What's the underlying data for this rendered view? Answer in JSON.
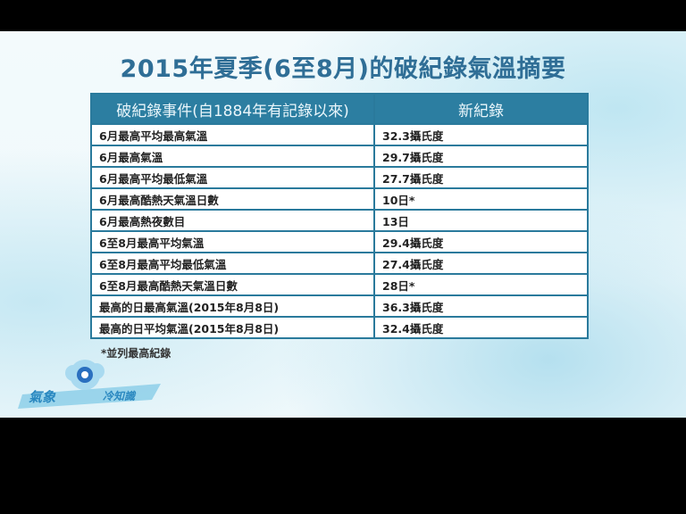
{
  "title": "2015年夏季(6至8月)的破紀錄氣溫摘要",
  "table": {
    "headers": [
      "破紀錄事件(自1884年有記錄以來)",
      "新紀錄"
    ],
    "rows": [
      [
        "6月最高平均最高氣溫",
        "32.3攝氏度"
      ],
      [
        "6月最高氣溫",
        "29.7攝氏度"
      ],
      [
        "6月最高平均最低氣溫",
        "27.7攝氏度"
      ],
      [
        "6月最高酷熱天氣溫日數",
        "10日*"
      ],
      [
        "6月最高熱夜數目",
        "13日"
      ],
      [
        "6至8月最高平均氣溫",
        "29.4攝氏度"
      ],
      [
        "6至8月最高平均最低氣溫",
        "27.4攝氏度"
      ],
      [
        "6至8月最高酷熱天氣溫日數",
        "28日*"
      ],
      [
        "最高的日最高氣溫(2015年8月8日)",
        "36.3攝氏度"
      ],
      [
        "最高的日平均氣溫(2015年8月8日)",
        "32.4攝氏度"
      ]
    ]
  },
  "footnote": "*並列最高紀錄",
  "logo": {
    "text": "氣象冷知識",
    "accent": "#2a6fbf"
  },
  "colors": {
    "header": "#2c7ea1",
    "title": "#2f6e96"
  }
}
